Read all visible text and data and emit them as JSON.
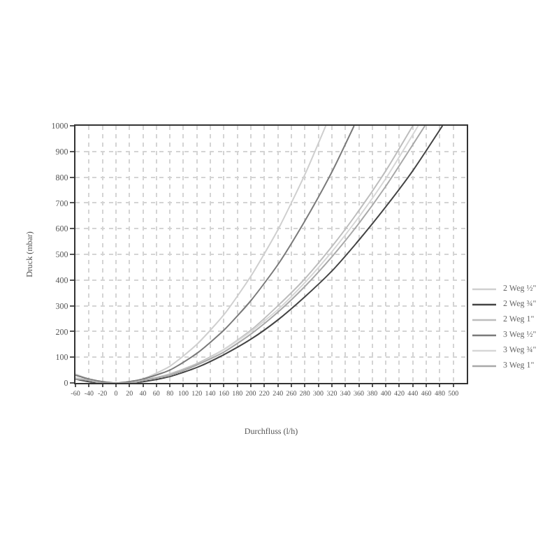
{
  "chart_data": {
    "type": "line",
    "xlabel": "Durchfluss (l/h)",
    "ylabel": "Druck (mbar)",
    "series": [
      {
        "name": "2 Weg ½\"",
        "color": "#cfcfcf",
        "x": [
          -60,
          -40,
          -20,
          0,
          20,
          40,
          80,
          120,
          160,
          200,
          240,
          280,
          311
        ],
        "values": [
          35,
          15,
          5,
          0,
          5,
          15,
          65,
          150,
          265,
          415,
          595,
          810,
          1000
        ]
      },
      {
        "name": "2 Weg ¾\"",
        "color": "#444444",
        "x": [
          -60,
          -40,
          -20,
          0,
          20,
          40,
          80,
          120,
          160,
          200,
          240,
          280,
          320,
          360,
          400,
          440,
          484
        ],
        "values": [
          15,
          5,
          0,
          0,
          0,
          5,
          25,
          60,
          110,
          170,
          245,
          335,
          435,
          555,
          685,
          825,
          1000
        ]
      },
      {
        "name": "2 Weg 1\"",
        "color": "#bdbdbd",
        "x": [
          -60,
          -40,
          -20,
          0,
          20,
          40,
          80,
          120,
          160,
          200,
          240,
          280,
          320,
          360,
          400,
          440
        ],
        "values": [
          20,
          10,
          0,
          0,
          0,
          10,
          35,
          75,
          130,
          205,
          300,
          405,
          530,
          670,
          825,
          1000
        ]
      },
      {
        "name": "3 Weg ½\"",
        "color": "#7a7a7a",
        "x": [
          -60,
          -40,
          -20,
          0,
          20,
          40,
          80,
          120,
          160,
          200,
          240,
          280,
          320,
          353
        ],
        "values": [
          30,
          15,
          5,
          0,
          5,
          15,
          50,
          115,
          205,
          320,
          460,
          630,
          820,
          1000
        ]
      },
      {
        "name": "3 Weg ¾\"",
        "color": "#d6d6d6",
        "x": [
          -60,
          -40,
          -20,
          0,
          20,
          40,
          80,
          120,
          160,
          200,
          240,
          280,
          320,
          360,
          400,
          448
        ],
        "values": [
          20,
          10,
          0,
          0,
          0,
          10,
          30,
          70,
          130,
          200,
          285,
          390,
          510,
          645,
          795,
          1000
        ]
      },
      {
        "name": "3 Weg 1\"",
        "color": "#a8a8a8",
        "x": [
          -60,
          -40,
          -20,
          0,
          20,
          40,
          80,
          120,
          160,
          200,
          240,
          280,
          320,
          360,
          400,
          458
        ],
        "values": [
          15,
          10,
          0,
          0,
          0,
          10,
          30,
          70,
          120,
          190,
          275,
          375,
          490,
          620,
          765,
          1000
        ]
      }
    ],
    "xlim": [
      -60,
      520
    ],
    "xticks": [
      -60,
      -40,
      -20,
      0,
      20,
      40,
      60,
      80,
      100,
      120,
      140,
      160,
      180,
      200,
      220,
      240,
      260,
      280,
      300,
      320,
      340,
      360,
      380,
      400,
      420,
      440,
      460,
      480,
      500
    ],
    "ylim": [
      0,
      1000
    ],
    "yticks": [
      0,
      100,
      200,
      300,
      400,
      500,
      600,
      700,
      800,
      900,
      1000
    ],
    "grid": true,
    "legend": "bottom right"
  }
}
